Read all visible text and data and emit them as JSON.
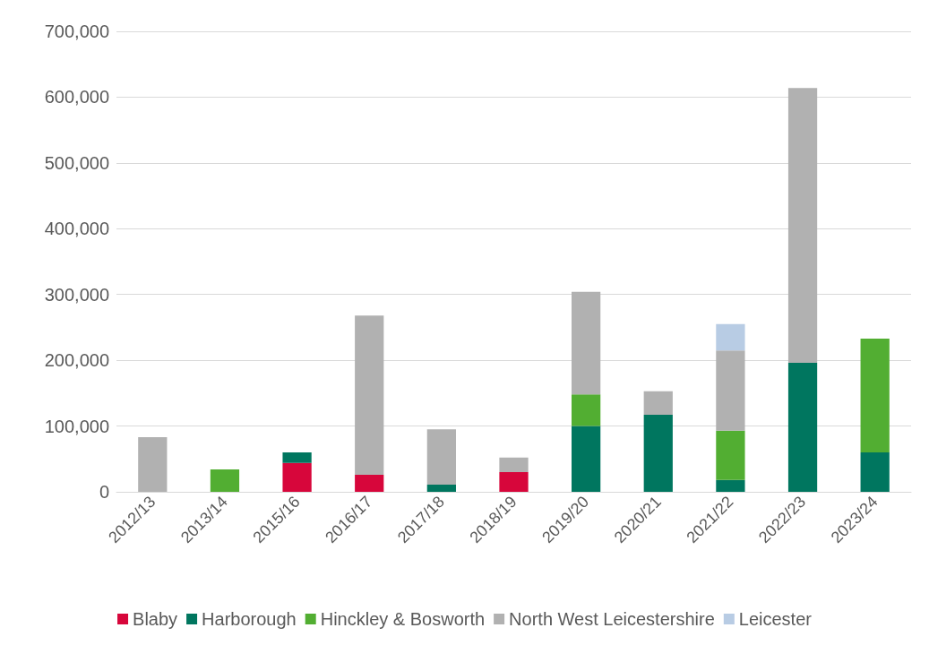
{
  "chart_data": {
    "type": "bar",
    "stacked": true,
    "categories": [
      "2012/13",
      "2013/14",
      "2015/16",
      "2016/17",
      "2017/18",
      "2018/19",
      "2019/20",
      "2020/21",
      "2021/22",
      "2022/23",
      "2023/24"
    ],
    "series": [
      {
        "name": "Blaby",
        "color": "#d7063b",
        "values": [
          null,
          null,
          44000,
          26000,
          null,
          30000,
          null,
          null,
          null,
          null,
          null
        ]
      },
      {
        "name": "Harborough",
        "color": "#00765f",
        "values": [
          null,
          null,
          16000,
          null,
          11000,
          null,
          100000,
          117000,
          18000,
          196000,
          60000
        ]
      },
      {
        "name": "Hinckley & Bosworth",
        "color": "#52ae32",
        "values": [
          null,
          34000,
          null,
          null,
          null,
          null,
          48000,
          null,
          75000,
          null,
          173000
        ]
      },
      {
        "name": "North West Leicestershire",
        "color": "#b1b1b1",
        "values": [
          83000,
          null,
          null,
          242000,
          84000,
          22000,
          156000,
          36000,
          122000,
          418000,
          null
        ]
      },
      {
        "name": "Leicester",
        "color": "#b8cce4",
        "values": [
          null,
          null,
          null,
          null,
          null,
          null,
          null,
          null,
          40000,
          null,
          null
        ]
      }
    ],
    "ylim": [
      0,
      700000
    ],
    "yticks": [
      0,
      {
        "value": 100000,
        "label": "100,000"
      },
      {
        "value": 200000,
        "label": "200,000"
      },
      {
        "value": 300000,
        "label": "300,000"
      },
      {
        "value": 400000,
        "label": "400,000"
      },
      {
        "value": 500000,
        "label": "500,000"
      },
      {
        "value": 600000,
        "label": "600,000"
      },
      {
        "value": 700000,
        "label": "700,000"
      }
    ],
    "grid": "y",
    "legend": "bottom"
  }
}
